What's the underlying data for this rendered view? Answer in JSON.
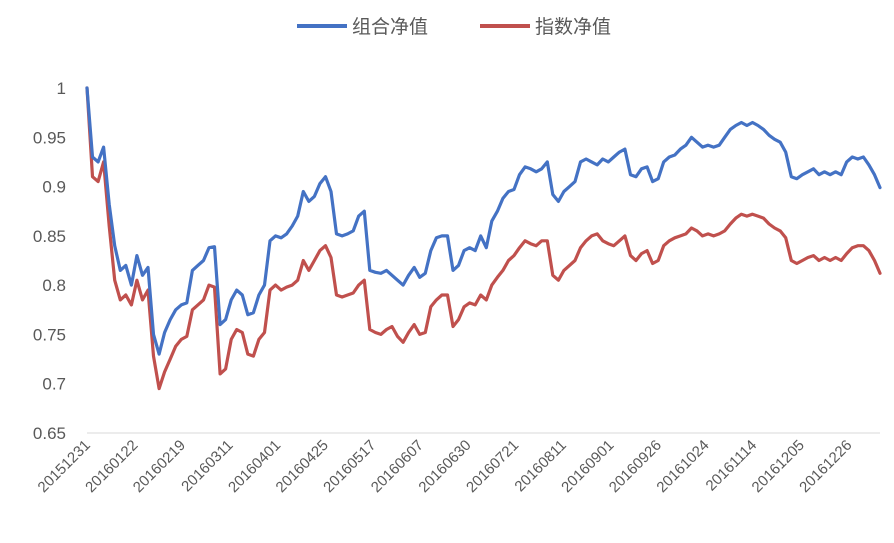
{
  "chart_data": {
    "type": "line",
    "title": "",
    "xlabel": "",
    "ylabel": "",
    "ylim": [
      0.65,
      1.0
    ],
    "yticks": [
      "1",
      "0.95",
      "0.9",
      "0.85",
      "0.8",
      "0.75",
      "0.7",
      "0.65"
    ],
    "xtick_labels": [
      "20151231",
      "20160122",
      "20160219",
      "20160311",
      "20160401",
      "20160425",
      "20160517",
      "20160607",
      "20160630",
      "20160721",
      "20160811",
      "20160901",
      "20160926",
      "20161024",
      "20161114",
      "20161205",
      "20161226"
    ],
    "grid": false,
    "legend_position": "top",
    "series": [
      {
        "name": "组合净值",
        "color": "#4472C4",
        "values": [
          1.0,
          0.93,
          0.925,
          0.94,
          0.882,
          0.84,
          0.815,
          0.82,
          0.8,
          0.83,
          0.81,
          0.818,
          0.75,
          0.73,
          0.752,
          0.765,
          0.775,
          0.78,
          0.782,
          0.815,
          0.82,
          0.825,
          0.838,
          0.839,
          0.76,
          0.765,
          0.785,
          0.795,
          0.79,
          0.77,
          0.772,
          0.79,
          0.8,
          0.845,
          0.85,
          0.848,
          0.852,
          0.86,
          0.87,
          0.895,
          0.885,
          0.89,
          0.903,
          0.91,
          0.895,
          0.852,
          0.85,
          0.852,
          0.855,
          0.87,
          0.875,
          0.815,
          0.813,
          0.812,
          0.815,
          0.81,
          0.805,
          0.8,
          0.81,
          0.818,
          0.808,
          0.812,
          0.835,
          0.848,
          0.85,
          0.85,
          0.815,
          0.82,
          0.835,
          0.838,
          0.835,
          0.85,
          0.838,
          0.865,
          0.875,
          0.888,
          0.895,
          0.897,
          0.912,
          0.92,
          0.918,
          0.915,
          0.918,
          0.925,
          0.892,
          0.885,
          0.895,
          0.9,
          0.905,
          0.925,
          0.928,
          0.925,
          0.922,
          0.928,
          0.925,
          0.93,
          0.935,
          0.938,
          0.912,
          0.91,
          0.918,
          0.92,
          0.905,
          0.908,
          0.925,
          0.93,
          0.932,
          0.938,
          0.942,
          0.95,
          0.945,
          0.94,
          0.942,
          0.94,
          0.942,
          0.95,
          0.958,
          0.962,
          0.965,
          0.962,
          0.965,
          0.962,
          0.958,
          0.952,
          0.948,
          0.945,
          0.935,
          0.91,
          0.908,
          0.912,
          0.915,
          0.918,
          0.912,
          0.915,
          0.912,
          0.915,
          0.912,
          0.925,
          0.93,
          0.928,
          0.93,
          0.922,
          0.912,
          0.899
        ]
      },
      {
        "name": "指数净值",
        "color": "#C0504D",
        "values": [
          1.0,
          0.91,
          0.905,
          0.925,
          0.86,
          0.805,
          0.785,
          0.79,
          0.78,
          0.805,
          0.785,
          0.795,
          0.728,
          0.695,
          0.712,
          0.725,
          0.738,
          0.745,
          0.748,
          0.775,
          0.78,
          0.785,
          0.8,
          0.798,
          0.71,
          0.715,
          0.745,
          0.755,
          0.752,
          0.73,
          0.728,
          0.745,
          0.752,
          0.795,
          0.8,
          0.795,
          0.798,
          0.8,
          0.805,
          0.825,
          0.815,
          0.825,
          0.835,
          0.84,
          0.828,
          0.79,
          0.788,
          0.79,
          0.792,
          0.8,
          0.805,
          0.755,
          0.752,
          0.75,
          0.755,
          0.758,
          0.748,
          0.742,
          0.752,
          0.76,
          0.75,
          0.752,
          0.778,
          0.785,
          0.79,
          0.79,
          0.758,
          0.765,
          0.778,
          0.782,
          0.78,
          0.79,
          0.785,
          0.8,
          0.808,
          0.815,
          0.825,
          0.83,
          0.838,
          0.845,
          0.842,
          0.84,
          0.845,
          0.845,
          0.81,
          0.805,
          0.815,
          0.82,
          0.825,
          0.838,
          0.845,
          0.85,
          0.852,
          0.845,
          0.842,
          0.84,
          0.845,
          0.85,
          0.83,
          0.825,
          0.832,
          0.835,
          0.822,
          0.825,
          0.84,
          0.845,
          0.848,
          0.85,
          0.852,
          0.858,
          0.855,
          0.85,
          0.852,
          0.85,
          0.852,
          0.855,
          0.862,
          0.868,
          0.872,
          0.87,
          0.872,
          0.87,
          0.868,
          0.862,
          0.858,
          0.855,
          0.848,
          0.825,
          0.822,
          0.825,
          0.828,
          0.83,
          0.825,
          0.828,
          0.825,
          0.828,
          0.825,
          0.832,
          0.838,
          0.84,
          0.84,
          0.835,
          0.825,
          0.812
        ]
      }
    ]
  }
}
